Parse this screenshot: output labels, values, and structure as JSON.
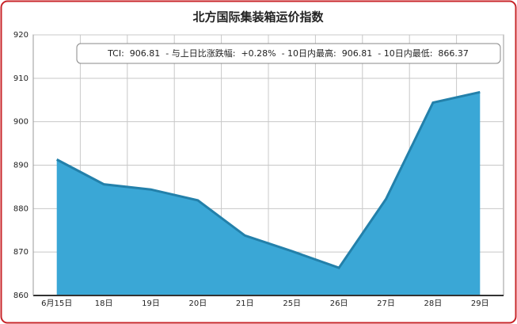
{
  "chart_data": {
    "type": "area",
    "title": "北方国际集装箱运价指数",
    "annotation": "TCI:  906.81  - 与上日比涨跌幅:  +0.28%  - 10日内最高:  906.81  - 10日内最低:  866.37",
    "categories": [
      "6月15日",
      "18日",
      "19日",
      "20日",
      "21日",
      "25日",
      "26日",
      "27日",
      "28日",
      "29日"
    ],
    "values": [
      891.3,
      885.6,
      884.4,
      881.9,
      873.8,
      870.2,
      866.37,
      882.2,
      904.4,
      906.81
    ],
    "color": "#3aa7d6",
    "line_color": "#2380aa",
    "ylim": [
      860,
      920
    ],
    "yticks": [
      860,
      870,
      880,
      890,
      900,
      910,
      920
    ],
    "grid": true
  }
}
